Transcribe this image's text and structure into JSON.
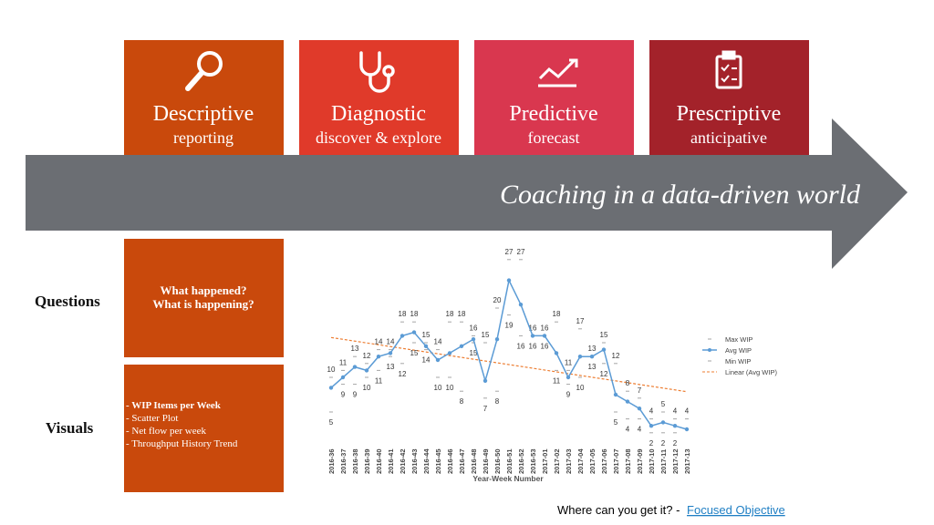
{
  "slide": {
    "stages": [
      {
        "title": "Descriptive",
        "subtitle": "reporting"
      },
      {
        "title": "Diagnostic",
        "subtitle": "discover & explore"
      },
      {
        "title": "Predictive",
        "subtitle": "forecast"
      },
      {
        "title": "Prescriptive",
        "subtitle": "anticipative"
      }
    ],
    "banner": "Coaching in a data-driven world",
    "questions": {
      "label": "Questions",
      "lines": [
        "What happened?",
        "What is happening?"
      ]
    },
    "visuals": {
      "label": "Visuals",
      "items": [
        "- WIP Items per Week",
        "- Scatter Plot",
        "- Net flow per week",
        "- Throughput History Trend"
      ]
    },
    "footer": {
      "text": "Where can you get it? -",
      "link": "Focused Objective"
    }
  },
  "chart_data": {
    "type": "line",
    "x_label": "Year-Week Number",
    "categories": [
      "2016-36",
      "2016-37",
      "2016-38",
      "2016-39",
      "2016-40",
      "2016-41",
      "2016-42",
      "2016-43",
      "2016-44",
      "2016-45",
      "2016-46",
      "2016-47",
      "2016-48",
      "2016-49",
      "2016-50",
      "2016-51",
      "2016-52",
      "2016-53",
      "2017-01",
      "2017-02",
      "2017-03",
      "2017-04",
      "2017-05",
      "2017-06",
      "2017-07",
      "2017-08",
      "2017-09",
      "2017-10",
      "2017-11",
      "2017-12",
      "2017-13"
    ],
    "ylim": [
      0,
      30
    ],
    "series": [
      {
        "name": "Max WIP",
        "color": "#a6a6a6",
        "values": [
          10,
          11,
          13,
          12,
          14,
          14,
          18,
          18,
          15,
          14,
          18,
          18,
          16,
          15,
          20,
          27,
          27,
          16,
          16,
          18,
          11,
          17,
          13,
          15,
          12,
          8,
          7,
          4,
          5,
          4,
          4
        ]
      },
      {
        "name": "Avg WIP",
        "color": "#5b9bd5",
        "values": [
          8.5,
          10,
          11.5,
          11,
          13,
          13.5,
          16,
          16.5,
          14.5,
          12.5,
          13.5,
          14.5,
          15.5,
          9.5,
          15.5,
          24,
          20.5,
          16,
          16,
          13.5,
          10,
          13,
          13,
          14,
          7.5,
          6.5,
          5.5,
          3,
          3.5,
          3,
          2.5
        ]
      },
      {
        "name": "Min WIP",
        "color": "#a6a6a6",
        "values": [
          5,
          9,
          9,
          10,
          11,
          13,
          12,
          15,
          14,
          10,
          10,
          8,
          15,
          7,
          8,
          19,
          16,
          16,
          16,
          11,
          9,
          10,
          13,
          12,
          5,
          4,
          4,
          2,
          2,
          2,
          null
        ]
      }
    ],
    "trend": {
      "name": "Linear (Avg WIP)",
      "color": "#ed7d31"
    }
  }
}
